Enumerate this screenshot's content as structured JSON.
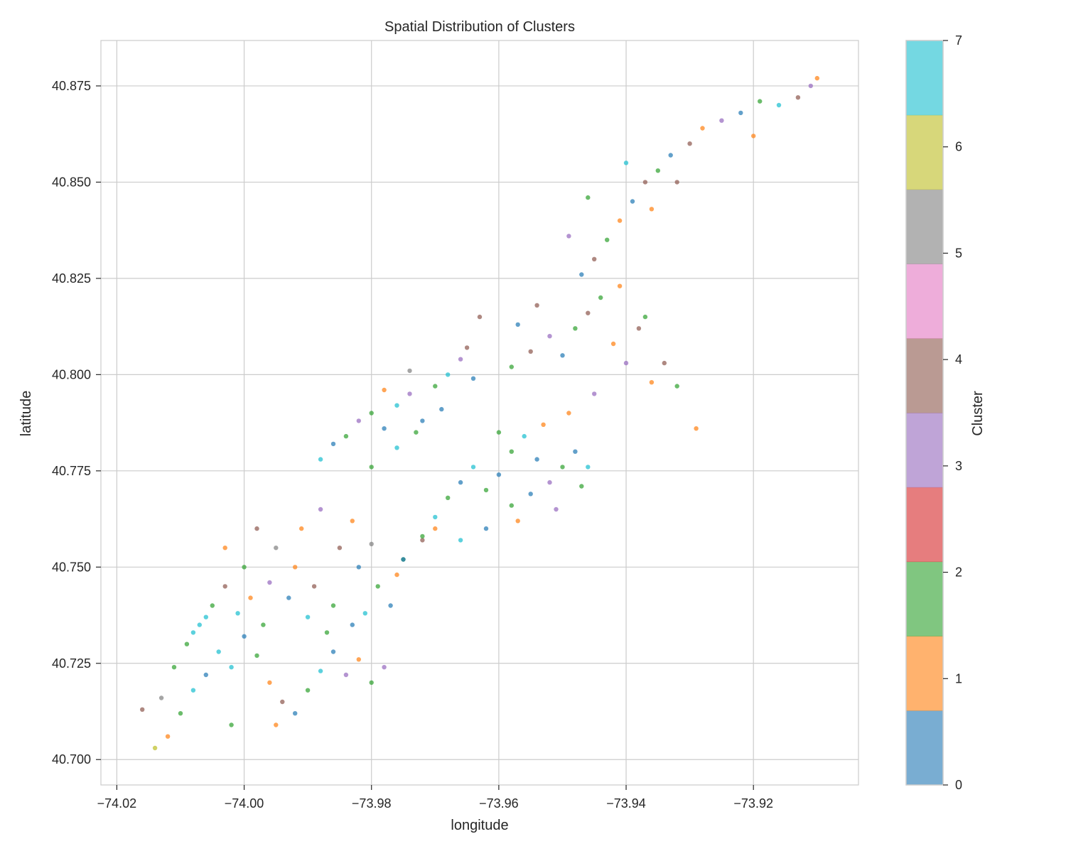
{
  "chart_data": {
    "type": "scatter",
    "title": "Spatial Distribution of Clusters",
    "xlabel": "longitude",
    "ylabel": "latitude",
    "xlim": [
      -74.0225,
      -73.9035
    ],
    "ylim": [
      40.6934,
      40.8868
    ],
    "xticks": [
      -74.02,
      -74.0,
      -73.98,
      -73.96,
      -73.94,
      -73.92
    ],
    "xtick_labels": [
      "−74.02",
      "−74.00",
      "−73.98",
      "−73.96",
      "−73.94",
      "−73.92"
    ],
    "yticks": [
      40.7,
      40.725,
      40.75,
      40.775,
      40.8,
      40.825,
      40.85,
      40.875
    ],
    "ytick_labels": [
      "40.700",
      "40.725",
      "40.750",
      "40.775",
      "40.800",
      "40.825",
      "40.850",
      "40.875"
    ],
    "grid": true,
    "point_alpha": 0.7,
    "colormap": "tab10",
    "colorbar": {
      "label": "Cluster",
      "range": [
        0,
        7
      ],
      "ticks": [
        0,
        1,
        2,
        3,
        4,
        5,
        6,
        7
      ],
      "tick_labels": [
        "0",
        "1",
        "2",
        "3",
        "4",
        "5",
        "6",
        "7"
      ],
      "bin_colors": [
        "#1f77b4",
        "#ff7f0e",
        "#2ca02c",
        "#d62728",
        "#9467bd",
        "#8c564b",
        "#e377c2",
        "#7f7f7f",
        "#bcbd22",
        "#17becf"
      ]
    },
    "cluster_colors": {
      "0": "#1f77b4",
      "1": "#ff7f0e",
      "2": "#2ca02c",
      "3": "#9467bd",
      "4": "#8c564b",
      "5": "#7f7f7f",
      "6": "#bcbd22",
      "7": "#17becf"
    },
    "points_fields": [
      "longitude",
      "latitude",
      "cluster"
    ],
    "points": [
      [
        -74.012,
        40.706,
        1
      ],
      [
        -74.01,
        40.712,
        2
      ],
      [
        -74.008,
        40.718,
        7
      ],
      [
        -74.006,
        40.722,
        0
      ],
      [
        -74.009,
        40.73,
        2
      ],
      [
        -74.007,
        40.735,
        7
      ],
      [
        -74.005,
        40.74,
        2
      ],
      [
        -74.003,
        40.745,
        4
      ],
      [
        -74.001,
        40.738,
        7
      ],
      [
        -74.0,
        40.732,
        0
      ],
      [
        -73.998,
        40.727,
        2
      ],
      [
        -73.996,
        40.72,
        1
      ],
      [
        -73.994,
        40.715,
        4
      ],
      [
        -73.992,
        40.712,
        0
      ],
      [
        -73.99,
        40.718,
        2
      ],
      [
        -73.988,
        40.723,
        7
      ],
      [
        -73.986,
        40.728,
        0
      ],
      [
        -73.984,
        40.722,
        3
      ],
      [
        -73.982,
        40.726,
        1
      ],
      [
        -73.98,
        40.72,
        2
      ],
      [
        -73.978,
        40.724,
        3
      ],
      [
        -73.983,
        40.735,
        0
      ],
      [
        -73.986,
        40.74,
        2
      ],
      [
        -73.989,
        40.745,
        4
      ],
      [
        -73.992,
        40.75,
        1
      ],
      [
        -73.995,
        40.755,
        5
      ],
      [
        -73.998,
        40.76,
        4
      ],
      [
        -74.0,
        40.75,
        2
      ],
      [
        -74.003,
        40.755,
        1
      ],
      [
        -73.993,
        40.742,
        0
      ],
      [
        -73.99,
        40.737,
        7
      ],
      [
        -73.987,
        40.733,
        2
      ],
      [
        -73.996,
        40.746,
        3
      ],
      [
        -73.999,
        40.742,
        1
      ],
      [
        -74.004,
        40.728,
        7
      ],
      [
        -74.013,
        40.716,
        5
      ],
      [
        -74.011,
        40.724,
        2
      ],
      [
        -73.997,
        40.735,
        2
      ],
      [
        -73.991,
        40.76,
        1
      ],
      [
        -73.988,
        40.765,
        3
      ],
      [
        -73.985,
        40.755,
        4
      ],
      [
        -73.982,
        40.75,
        0
      ],
      [
        -73.979,
        40.745,
        2
      ],
      [
        -73.976,
        40.748,
        1
      ],
      [
        -73.98,
        40.756,
        5
      ],
      [
        -73.983,
        40.762,
        1
      ],
      [
        -73.977,
        40.74,
        0
      ],
      [
        -73.981,
        40.738,
        7
      ],
      [
        -74.016,
        40.713,
        4
      ],
      [
        -74.002,
        40.709,
        2
      ],
      [
        -73.995,
        40.709,
        1
      ],
      [
        -73.975,
        40.752,
        2
      ],
      [
        -73.972,
        40.757,
        4
      ],
      [
        -73.97,
        40.76,
        1
      ],
      [
        -74.014,
        40.703,
        6
      ],
      [
        -74.008,
        40.733,
        7
      ],
      [
        -74.006,
        40.737,
        7
      ],
      [
        -74.002,
        40.724,
        7
      ],
      [
        -73.988,
        40.778,
        7
      ],
      [
        -73.986,
        40.782,
        0
      ],
      [
        -73.984,
        40.784,
        2
      ],
      [
        -73.982,
        40.788,
        3
      ],
      [
        -73.98,
        40.79,
        2
      ],
      [
        -73.978,
        40.786,
        0
      ],
      [
        -73.976,
        40.792,
        7
      ],
      [
        -73.974,
        40.795,
        3
      ],
      [
        -73.972,
        40.788,
        0
      ],
      [
        -73.97,
        40.797,
        2
      ],
      [
        -73.968,
        40.8,
        7
      ],
      [
        -73.966,
        40.804,
        3
      ],
      [
        -73.964,
        40.799,
        0
      ],
      [
        -73.98,
        40.776,
        2
      ],
      [
        -73.976,
        40.781,
        7
      ],
      [
        -73.973,
        40.785,
        2
      ],
      [
        -73.969,
        40.791,
        0
      ],
      [
        -73.965,
        40.807,
        4
      ],
      [
        -73.978,
        40.796,
        1
      ],
      [
        -73.974,
        40.801,
        5
      ],
      [
        -73.975,
        40.752,
        0
      ],
      [
        -73.972,
        40.758,
        2
      ],
      [
        -73.97,
        40.763,
        7
      ],
      [
        -73.968,
        40.768,
        2
      ],
      [
        -73.966,
        40.772,
        0
      ],
      [
        -73.964,
        40.776,
        7
      ],
      [
        -73.962,
        40.77,
        2
      ],
      [
        -73.96,
        40.774,
        0
      ],
      [
        -73.958,
        40.78,
        2
      ],
      [
        -73.956,
        40.784,
        7
      ],
      [
        -73.954,
        40.778,
        0
      ],
      [
        -73.952,
        40.772,
        3
      ],
      [
        -73.95,
        40.776,
        2
      ],
      [
        -73.948,
        40.78,
        0
      ],
      [
        -73.946,
        40.776,
        7
      ],
      [
        -73.958,
        40.766,
        2
      ],
      [
        -73.962,
        40.76,
        0
      ],
      [
        -73.966,
        40.757,
        7
      ],
      [
        -73.955,
        40.769,
        0
      ],
      [
        -73.96,
        40.785,
        2
      ],
      [
        -73.957,
        40.762,
        1
      ],
      [
        -73.951,
        40.765,
        3
      ],
      [
        -73.947,
        40.771,
        2
      ],
      [
        -73.953,
        40.787,
        1
      ],
      [
        -73.958,
        40.802,
        2
      ],
      [
        -73.955,
        40.806,
        4
      ],
      [
        -73.952,
        40.81,
        3
      ],
      [
        -73.95,
        40.805,
        0
      ],
      [
        -73.948,
        40.812,
        2
      ],
      [
        -73.946,
        40.816,
        4
      ],
      [
        -73.944,
        40.82,
        2
      ],
      [
        -73.942,
        40.808,
        1
      ],
      [
        -73.94,
        40.803,
        3
      ],
      [
        -73.938,
        40.812,
        4
      ],
      [
        -73.936,
        40.798,
        1
      ],
      [
        -73.934,
        40.803,
        4
      ],
      [
        -73.932,
        40.797,
        2
      ],
      [
        -73.945,
        40.795,
        3
      ],
      [
        -73.949,
        40.79,
        1
      ],
      [
        -73.954,
        40.818,
        4
      ],
      [
        -73.957,
        40.813,
        0
      ],
      [
        -73.941,
        40.823,
        1
      ],
      [
        -73.937,
        40.815,
        2
      ],
      [
        -73.947,
        40.826,
        0
      ],
      [
        -73.929,
        40.786,
        1
      ],
      [
        -73.963,
        40.815,
        4
      ],
      [
        -73.945,
        40.83,
        4
      ],
      [
        -73.943,
        40.835,
        2
      ],
      [
        -73.941,
        40.84,
        1
      ],
      [
        -73.939,
        40.845,
        0
      ],
      [
        -73.937,
        40.85,
        4
      ],
      [
        -73.935,
        40.853,
        2
      ],
      [
        -73.933,
        40.857,
        0
      ],
      [
        -73.93,
        40.86,
        4
      ],
      [
        -73.928,
        40.864,
        1
      ],
      [
        -73.925,
        40.866,
        3
      ],
      [
        -73.922,
        40.868,
        0
      ],
      [
        -73.919,
        40.871,
        2
      ],
      [
        -73.916,
        40.87,
        7
      ],
      [
        -73.913,
        40.872,
        4
      ],
      [
        -73.91,
        40.877,
        1
      ],
      [
        -73.911,
        40.875,
        3
      ],
      [
        -73.94,
        40.855,
        7
      ],
      [
        -73.946,
        40.846,
        2
      ],
      [
        -73.932,
        40.85,
        4
      ],
      [
        -73.92,
        40.862,
        1
      ],
      [
        -73.949,
        40.836,
        3
      ],
      [
        -73.936,
        40.843,
        1
      ]
    ]
  }
}
